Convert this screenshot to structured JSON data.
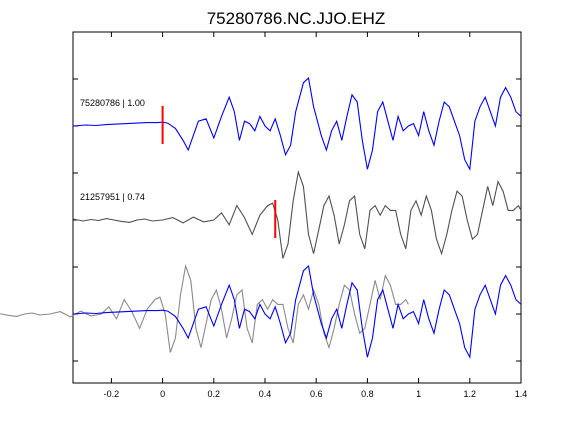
{
  "chart_data": {
    "type": "line",
    "title": "75280786.NC.JJO.EHZ",
    "xlabel": "",
    "ylabel": "",
    "xlim": [
      -0.35,
      1.4
    ],
    "x_ticks": [
      -0.2,
      0,
      0.2,
      0.4,
      0.6,
      0.8,
      1,
      1.2,
      1.4
    ],
    "x_tick_labels": [
      "-0.2",
      "0",
      "0.2",
      "0.4",
      "0.6",
      "0.8",
      "1",
      "1.2",
      "1.4"
    ],
    "grid": false,
    "colors": {
      "primary": "#0000ff",
      "secondary": "#505050",
      "overlay_gray": "#8a8a8a",
      "pick": "#ff0000"
    },
    "traces": [
      {
        "label": "75280786 | 1.00",
        "color": "#0000ff",
        "pick_time": 0.0,
        "x": [
          -0.35,
          -0.3,
          -0.26,
          -0.22,
          -0.18,
          -0.14,
          -0.1,
          -0.06,
          -0.02,
          0.0,
          0.02,
          0.05,
          0.08,
          0.1,
          0.12,
          0.14,
          0.17,
          0.2,
          0.23,
          0.26,
          0.28,
          0.3,
          0.32,
          0.34,
          0.36,
          0.38,
          0.4,
          0.42,
          0.44,
          0.46,
          0.48,
          0.5,
          0.52,
          0.55,
          0.57,
          0.59,
          0.62,
          0.64,
          0.66,
          0.68,
          0.7,
          0.72,
          0.74,
          0.76,
          0.78,
          0.8,
          0.82,
          0.84,
          0.86,
          0.88,
          0.9,
          0.92,
          0.94,
          0.96,
          0.98,
          1.0,
          1.02,
          1.04,
          1.06,
          1.08,
          1.1,
          1.12,
          1.14,
          1.16,
          1.18,
          1.2,
          1.22,
          1.24,
          1.26,
          1.28,
          1.3,
          1.32,
          1.34,
          1.36,
          1.38,
          1.4
        ],
        "y": [
          0,
          0.02,
          0.01,
          0.03,
          0.04,
          0.05,
          0.06,
          0.07,
          0.07,
          0.08,
          0.06,
          -0.05,
          -0.3,
          -0.5,
          -0.2,
          0.1,
          0.15,
          -0.25,
          0.2,
          0.6,
          0.3,
          -0.3,
          0.1,
          0.05,
          -0.1,
          0.2,
          0.0,
          -0.1,
          0.15,
          -0.2,
          -0.6,
          -0.4,
          0.3,
          0.9,
          1.0,
          0.4,
          -0.2,
          -0.5,
          -0.1,
          0.1,
          -0.3,
          0.2,
          0.65,
          0.5,
          -0.3,
          -0.9,
          -0.5,
          0.3,
          0.5,
          0.1,
          -0.3,
          0.2,
          -0.1,
          0.0,
          0.05,
          -0.2,
          0.3,
          -0.1,
          -0.4,
          0.1,
          0.5,
          0.4,
          0.1,
          -0.2,
          -0.7,
          -0.9,
          0.1,
          0.4,
          0.6,
          0.3,
          0.0,
          0.6,
          0.8,
          0.6,
          0.3,
          0.2
        ]
      },
      {
        "label": "21257951 | 0.74",
        "color": "#505050",
        "pick_time": 0.44,
        "x": [
          -0.35,
          -0.31,
          -0.28,
          -0.25,
          -0.22,
          -0.19,
          -0.16,
          -0.13,
          -0.1,
          -0.07,
          -0.04,
          0.0,
          0.04,
          0.08,
          0.12,
          0.16,
          0.2,
          0.23,
          0.26,
          0.29,
          0.32,
          0.35,
          0.38,
          0.41,
          0.43,
          0.45,
          0.47,
          0.49,
          0.51,
          0.53,
          0.55,
          0.57,
          0.59,
          0.61,
          0.63,
          0.65,
          0.67,
          0.69,
          0.71,
          0.73,
          0.75,
          0.77,
          0.79,
          0.81,
          0.83,
          0.85,
          0.87,
          0.89,
          0.91,
          0.93,
          0.95,
          0.97,
          0.99,
          1.01,
          1.03,
          1.05,
          1.07,
          1.09,
          1.11,
          1.13,
          1.15,
          1.17,
          1.19,
          1.21,
          1.23,
          1.25,
          1.27,
          1.29,
          1.31,
          1.33,
          1.35,
          1.37,
          1.39,
          1.4
        ],
        "y": [
          0.02,
          -0.02,
          0.01,
          -0.01,
          0.03,
          0.0,
          -0.03,
          -0.05,
          0.0,
          0.02,
          -0.02,
          0.0,
          0.05,
          -0.06,
          0.06,
          -0.04,
          0.0,
          0.15,
          -0.1,
          0.3,
          0.05,
          -0.3,
          0.1,
          0.3,
          0.35,
          0.0,
          -0.8,
          -0.5,
          0.4,
          1.0,
          0.7,
          -0.3,
          -0.7,
          -0.2,
          0.3,
          0.5,
          0.1,
          -0.5,
          -0.1,
          0.4,
          0.5,
          -0.3,
          -0.6,
          0.2,
          0.3,
          0.1,
          0.3,
          0.2,
          0.2,
          -0.3,
          -0.6,
          0.2,
          0.4,
          0.1,
          0.5,
          0.2,
          -0.4,
          -0.7,
          -0.3,
          0.2,
          0.6,
          0.5,
          0.0,
          -0.4,
          -0.3,
          0.2,
          0.7,
          0.3,
          0.8,
          0.6,
          0.2,
          0.2,
          0.3,
          0.2
        ]
      }
    ]
  }
}
